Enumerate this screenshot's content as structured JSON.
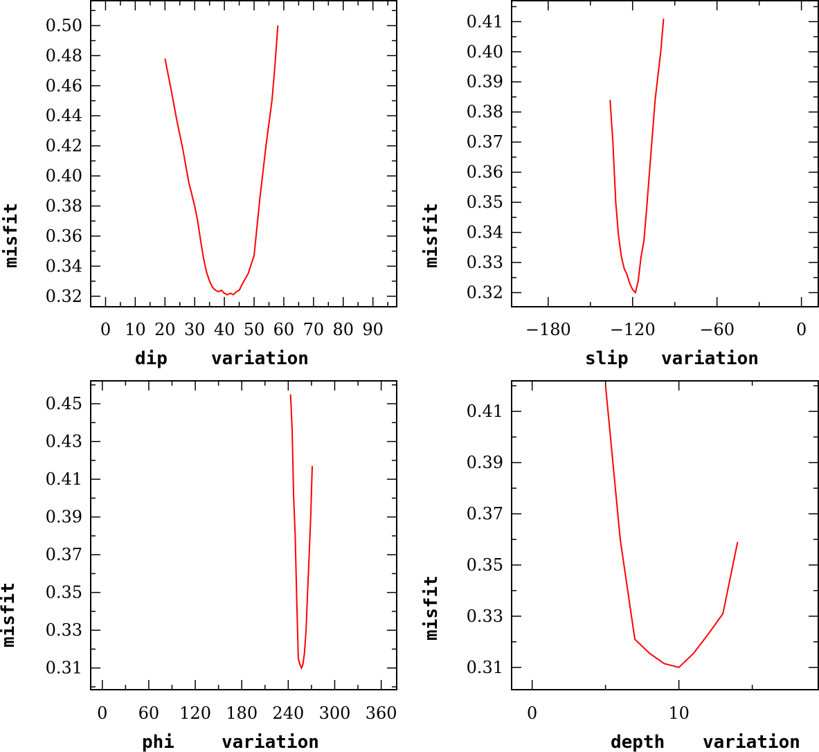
{
  "chart_data": [
    {
      "type": "line",
      "xlabel": "dip",
      "xlabel2": "variation",
      "ylabel": "misfit",
      "xlim": [
        -5,
        98
      ],
      "ylim": [
        0.313,
        0.517
      ],
      "xticks": [
        0,
        10,
        20,
        30,
        40,
        50,
        60,
        70,
        80,
        90
      ],
      "xtick_labels": [
        "0",
        "10",
        "20",
        "30",
        "40",
        "50",
        "60",
        "70",
        "80",
        "90"
      ],
      "yticks": [
        0.32,
        0.34,
        0.36,
        0.38,
        0.4,
        0.42,
        0.44,
        0.46,
        0.48,
        0.5
      ],
      "ytick_labels": [
        "0.32",
        "0.34",
        "0.36",
        "0.38",
        "0.40",
        "0.42",
        "0.44",
        "0.46",
        "0.48",
        "0.50"
      ],
      "series": [
        {
          "color": "#ff0000",
          "x": [
            20,
            22,
            24,
            26,
            28,
            30,
            31,
            32,
            33,
            34,
            35,
            36,
            37,
            38,
            39,
            40,
            41,
            42,
            43,
            44,
            45,
            46,
            48,
            50,
            52,
            54,
            56,
            57,
            58
          ],
          "y": [
            0.478,
            0.458,
            0.437,
            0.418,
            0.396,
            0.38,
            0.37,
            0.357,
            0.345,
            0.336,
            0.33,
            0.326,
            0.324,
            0.323,
            0.324,
            0.322,
            0.321,
            0.322,
            0.321,
            0.323,
            0.324,
            0.328,
            0.335,
            0.347,
            0.386,
            0.42,
            0.45,
            0.473,
            0.5
          ]
        }
      ]
    },
    {
      "type": "line",
      "xlabel": "slip",
      "xlabel2": "variation",
      "ylabel": "misfit",
      "xlim": [
        -206,
        12
      ],
      "ylim": [
        0.3153,
        0.4172
      ],
      "xticks": [
        -180,
        -120,
        -60,
        0
      ],
      "xtick_labels": [
        "−180",
        "−120",
        "−60",
        "0"
      ],
      "yticks": [
        0.32,
        0.33,
        0.34,
        0.35,
        0.36,
        0.37,
        0.38,
        0.39,
        0.4,
        0.41
      ],
      "ytick_labels": [
        "0.32",
        "0.33",
        "0.34",
        "0.35",
        "0.36",
        "0.37",
        "0.38",
        "0.39",
        "0.40",
        "0.41"
      ],
      "series": [
        {
          "color": "#ff0000",
          "x": [
            -136,
            -134,
            -132,
            -130,
            -128,
            -126,
            -124,
            -122,
            -120,
            -118,
            -116,
            -114,
            -112,
            -110,
            -108,
            -106,
            -104,
            -102,
            -100,
            -98
          ],
          "y": [
            0.384,
            0.37,
            0.35,
            0.339,
            0.332,
            0.328,
            0.326,
            0.323,
            0.321,
            0.32,
            0.324,
            0.332,
            0.337,
            0.348,
            0.36,
            0.372,
            0.384,
            0.392,
            0.4,
            0.411
          ]
        }
      ]
    },
    {
      "type": "line",
      "xlabel": "phi",
      "xlabel2": "variation",
      "ylabel": "misfit",
      "xlim": [
        -15,
        380
      ],
      "ylim": [
        0.2985,
        0.4625
      ],
      "xticks": [
        0,
        60,
        120,
        180,
        240,
        300,
        360
      ],
      "xtick_labels": [
        "0",
        "60",
        "120",
        "180",
        "240",
        "300",
        "360"
      ],
      "yticks": [
        0.31,
        0.33,
        0.35,
        0.37,
        0.39,
        0.41,
        0.43,
        0.45
      ],
      "ytick_labels": [
        "0.31",
        "0.33",
        "0.35",
        "0.37",
        "0.39",
        "0.41",
        "0.43",
        "0.45"
      ],
      "series": [
        {
          "color": "#ff0000",
          "x": [
            243,
            245,
            247,
            249,
            251,
            253,
            255,
            257,
            259,
            261,
            263,
            265,
            267,
            269,
            271
          ],
          "y": [
            0.455,
            0.437,
            0.4,
            0.38,
            0.345,
            0.315,
            0.312,
            0.31,
            0.312,
            0.318,
            0.33,
            0.35,
            0.37,
            0.39,
            0.417
          ]
        }
      ]
    },
    {
      "type": "line",
      "xlabel": "depth",
      "xlabel2": "variation",
      "ylabel": "misfit",
      "xlim": [
        -1.4,
        19.5
      ],
      "ylim": [
        0.3013,
        0.4222
      ],
      "xticks": [
        0,
        10
      ],
      "xtick_labels": [
        "0",
        "10"
      ],
      "yticks": [
        0.31,
        0.33,
        0.35,
        0.37,
        0.39,
        0.41
      ],
      "ytick_labels": [
        "0.31",
        "0.33",
        "0.35",
        "0.37",
        "0.39",
        "0.41"
      ],
      "series": [
        {
          "color": "#ff0000",
          "x": [
            5,
            6,
            7,
            8,
            9,
            10,
            11,
            12,
            13,
            14
          ],
          "y": [
            0.42,
            0.36,
            0.321,
            0.3155,
            0.3115,
            0.31,
            0.3155,
            0.323,
            0.331,
            0.359
          ]
        }
      ]
    }
  ]
}
